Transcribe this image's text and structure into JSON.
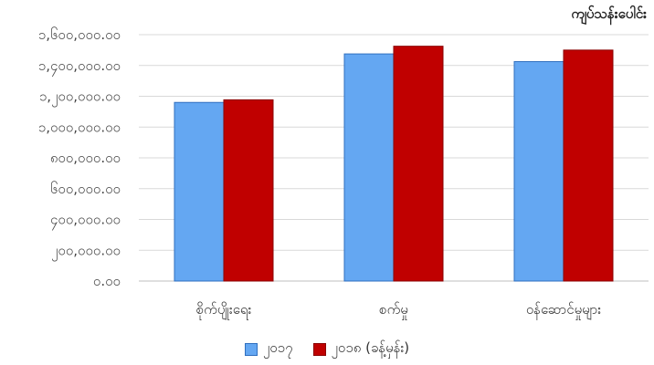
{
  "chart_data": {
    "type": "bar",
    "unit_label": "ကျပ်သန်းပေါင်း",
    "categories": [
      "စိုက်ပျိုးရေး",
      "စက်မှု",
      "ဝန်ဆောင်မှုများ"
    ],
    "series": [
      {
        "name": "၂၀၁၇",
        "color": "#64a7f2",
        "values": [
          1160000,
          1475000,
          1425000
        ]
      },
      {
        "name": "၂၀၁၈ (ခန့်မှန်း)",
        "color": "#c00000",
        "values": [
          1177000,
          1525000,
          1500000
        ]
      }
    ],
    "y_ticks": [
      "0.00",
      "200,000.00",
      "400,000.00",
      "600,000.00",
      "800,000.00",
      "1,000,000.00",
      "1,200,000.00",
      "1,400,000.00",
      "1,600,000.00"
    ],
    "y_tick_labels": [
      "၀.၀၀",
      "၂၀၀,၀၀၀.၀၀",
      "၄၀၀,၀၀၀.၀၀",
      "၆၀၀,၀၀၀.၀၀",
      "၈၀၀,၀၀၀.၀၀",
      "၁,၀၀၀,၀၀၀.၀၀",
      "၁,၂၀၀,၀၀၀.၀၀",
      "၁,၄၀၀,၀၀၀.၀၀",
      "၁,၆၀၀,၀၀၀.၀၀"
    ],
    "ylim": [
      0,
      1600000
    ],
    "grid": true,
    "legend": "bottom"
  }
}
